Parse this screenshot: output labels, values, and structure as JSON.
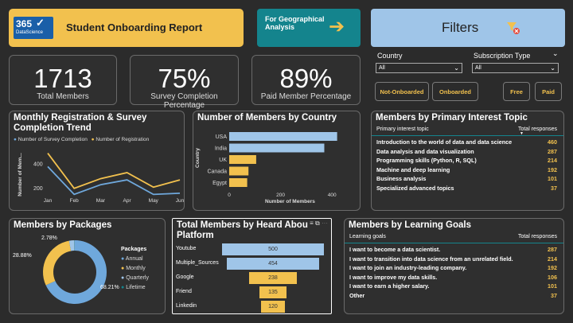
{
  "header": {
    "logo_number": "365",
    "logo_text": "DataScience",
    "title": "Student Onboarding Report",
    "geo_button": "For Geographical Analysis",
    "filters_title": "Filters"
  },
  "filters": {
    "country_label": "Country",
    "country_value": "All",
    "subscription_label": "Subscription Type",
    "subscription_value": "All",
    "buttons": [
      "Not-Onboarded",
      "Onboarded",
      "Free",
      "Paid"
    ]
  },
  "kpis": [
    {
      "value": "1713",
      "label": "Total Members"
    },
    {
      "value": "75%",
      "label": "Survey Completion Percentage"
    },
    {
      "value": "89%",
      "label": "Paid Member Percentage"
    }
  ],
  "trend": {
    "title": "Monthly Registration & Survey Completion Trend",
    "legend": [
      "Number of Survey Completion",
      "Number of Registration"
    ],
    "ylabel": "Number of Mem...",
    "yticks": [
      "400",
      "200"
    ],
    "months": [
      "Jan",
      "Feb",
      "Mar",
      "Apr",
      "May",
      "Jun"
    ],
    "colors": {
      "survey": "#6fa8dc",
      "registration": "#f2c14e"
    }
  },
  "country": {
    "title": "Number of Members by Country",
    "ylabel": "Country",
    "xlabel": "Number of Members",
    "xticks": [
      "0",
      "200",
      "400"
    ]
  },
  "topics": {
    "title": "Members by Primary Interest Topic",
    "col1": "Primary interest topic",
    "col2": "Total responses",
    "rows": [
      {
        "topic": "Introduction to the world of data and data science",
        "value": "460"
      },
      {
        "topic": "Data analysis and data visualization",
        "value": "287"
      },
      {
        "topic": "Programming skills (Python, R, SQL)",
        "value": "214"
      },
      {
        "topic": "Machine and deep learning",
        "value": "192"
      },
      {
        "topic": "Business analysis",
        "value": "101"
      },
      {
        "topic": "Specialized advanced topics",
        "value": "37"
      }
    ]
  },
  "packages": {
    "title": "Members by Packages",
    "legend_title": "Packages",
    "legend": [
      "Annual",
      "Monthly",
      "Quarterly",
      "Lifetime"
    ],
    "labels": [
      "2.78%",
      "28.88%",
      "68.21%"
    ]
  },
  "heard": {
    "title": "Total Members by Heard About Platform",
    "title_line1": "Total Members by Heard Abou",
    "title_line2": "Platform"
  },
  "goals": {
    "title": "Members by Learning Goals",
    "col1": "Learning goals",
    "col2": "Total responses",
    "rows": [
      {
        "goal": "I want to become a data scientist.",
        "value": "287"
      },
      {
        "goal": "I want to transition into data science from an unrelated field.",
        "value": "214"
      },
      {
        "goal": "I want to join an industry-leading company.",
        "value": "192"
      },
      {
        "goal": "I want to improve my data skills.",
        "value": "106"
      },
      {
        "goal": "I want to earn a higher salary.",
        "value": "101"
      },
      {
        "goal": "Other",
        "value": "37"
      }
    ]
  },
  "chart_data": [
    {
      "type": "line",
      "title": "Monthly Registration & Survey Completion Trend",
      "categories": [
        "Jan",
        "Feb",
        "Mar",
        "Apr",
        "May",
        "Jun"
      ],
      "series": [
        {
          "name": "Number of Survey Completion",
          "values": [
            380,
            150,
            230,
            270,
            150,
            160
          ]
        },
        {
          "name": "Number of Registration",
          "values": [
            490,
            200,
            280,
            330,
            210,
            270
          ]
        }
      ],
      "ylabel": "Number of Mem...",
      "ylim": [
        100,
        520
      ]
    },
    {
      "type": "bar",
      "title": "Number of Members by Country",
      "categories": [
        "USA",
        "India",
        "UK",
        "Canada",
        "Egypt"
      ],
      "values": [
        420,
        370,
        105,
        75,
        70
      ],
      "xlabel": "Number of Members",
      "ylabel": "Country",
      "xlim": [
        0,
        480
      ]
    },
    {
      "type": "pie",
      "title": "Members by Packages",
      "categories": [
        "Annual",
        "Monthly",
        "Quarterly",
        "Lifetime"
      ],
      "values": [
        68.21,
        28.88,
        2.78,
        0.13
      ]
    },
    {
      "type": "bar",
      "title": "Total Members by Heard About Platform",
      "categories": [
        "Youtube",
        "Multiple_Sources",
        "Google",
        "Friend",
        "Linkedin"
      ],
      "values": [
        500,
        454,
        238,
        135,
        120
      ]
    }
  ]
}
